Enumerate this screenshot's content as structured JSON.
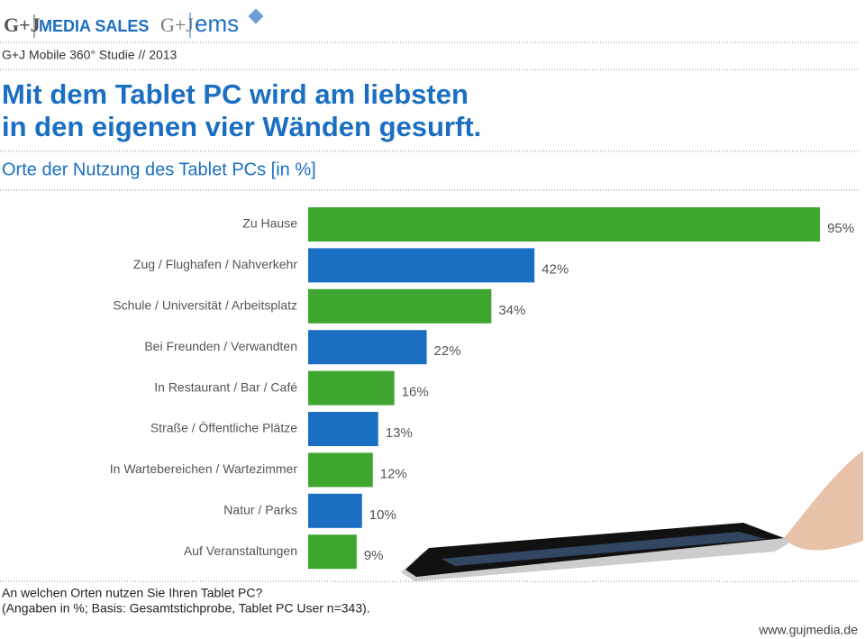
{
  "header": {
    "logo_left": "G+J",
    "brand": "MEDIA SALES",
    "logo_right": "G+J",
    "logo_right_text": "ems",
    "study": "G+J Mobile 360° Studie // 2013"
  },
  "chart_data": {
    "type": "bar",
    "orientation": "horizontal",
    "title": [
      "Mit dem Tablet PC wird am liebsten",
      "in den eigenen vier Wänden gesurft."
    ],
    "subtitle": "Orte der Nutzung des Tablet PCs [in %]",
    "categories": [
      "Zu Hause",
      "Zug / Flughafen / Nahverkehr",
      "Schule / Universität / Arbeitsplatz",
      "Bei Freunden / Verwandten",
      "In Restaurant / Bar / Café",
      "Straße / Öffentliche Plätze",
      "In Wartebereichen / Wartezimmer",
      "Natur / Parks",
      "Auf Veranstaltungen"
    ],
    "series": [
      {
        "values": [
          95,
          42,
          34,
          22,
          16,
          13,
          12,
          10,
          9
        ],
        "value_labels": [
          "95%",
          "42%",
          "34%",
          "22%",
          "16%",
          "13%",
          "12%",
          "10%",
          "9%"
        ],
        "colors": [
          "#3ea52f",
          "#1b6fc2",
          "#3ea52f",
          "#1b6fc2",
          "#3ea52f",
          "#1b6fc2",
          "#3ea52f",
          "#1b6fc2",
          "#3ea52f"
        ]
      }
    ],
    "xlim": [
      0,
      100
    ]
  },
  "footnotes": [
    "An welchen Orten nutzen Sie Ihren Tablet PC?",
    "(Angaben in %; Basis: Gesamtstichprobe, Tablet PC User n=343)."
  ],
  "footer": "www.gujmedia.de"
}
